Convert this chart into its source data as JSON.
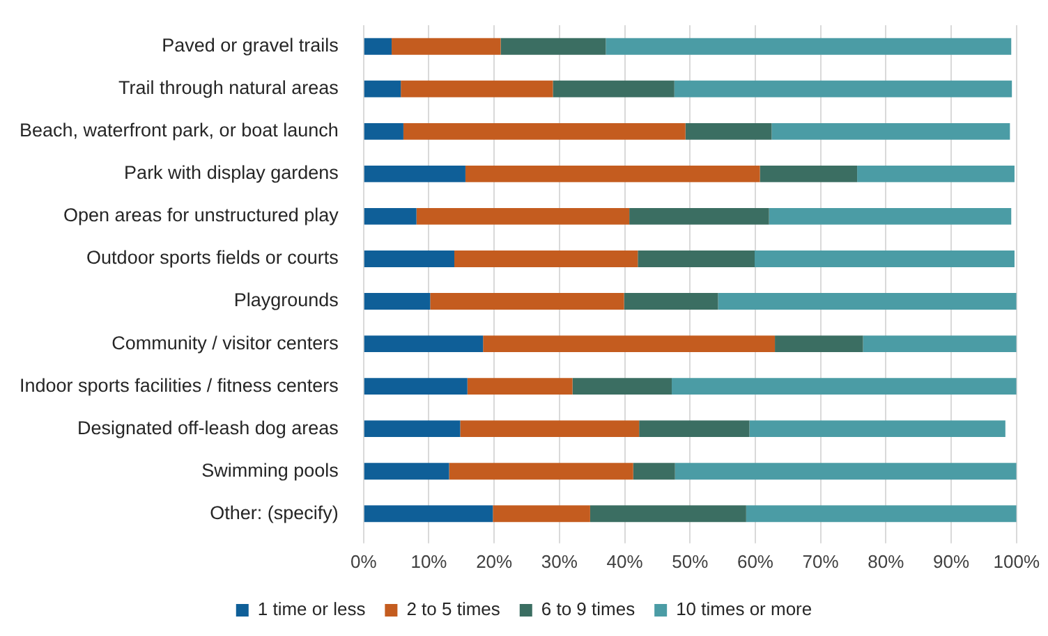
{
  "chart_data": {
    "type": "bar",
    "orientation": "horizontal",
    "stacked": true,
    "categories": [
      "Paved or gravel trails",
      "Trail through natural areas",
      "Beach, waterfront park, or boat launch",
      "Park with display gardens",
      "Open areas for unstructured play",
      "Outdoor sports fields or courts",
      "Playgrounds",
      "Community / visitor centers",
      "Indoor sports facilities / fitness centers",
      "Designated off-leash dog areas",
      "Swimming pools",
      "Other: (specify)"
    ],
    "series": [
      {
        "name": "1 time or less",
        "color": "#0f5f98",
        "values": [
          4.3,
          5.7,
          6.1,
          15.6,
          8.1,
          13.9,
          10.2,
          18.3,
          15.9,
          14.8,
          13.1,
          19.8
        ]
      },
      {
        "name": "2 to 5 times",
        "color": "#c45c1f",
        "values": [
          16.7,
          23.3,
          43.2,
          45.1,
          32.6,
          28.1,
          29.7,
          44.7,
          16.1,
          27.4,
          28.2,
          14.9
        ]
      },
      {
        "name": "6 to 9 times",
        "color": "#3b6e62",
        "values": [
          16.1,
          18.6,
          13.2,
          14.9,
          21.4,
          17.9,
          14.4,
          13.5,
          15.2,
          16.9,
          6.4,
          23.9
        ]
      },
      {
        "name": "10 times or more",
        "color": "#4b9ca5",
        "values": [
          62.1,
          51.7,
          36.5,
          24.1,
          37.1,
          39.8,
          45.7,
          23.5,
          52.8,
          39.2,
          52.3,
          41.4
        ]
      }
    ],
    "xlim": [
      0,
      100
    ],
    "xticks": [
      {
        "value": 0,
        "label": "0%"
      },
      {
        "value": 10,
        "label": "10%"
      },
      {
        "value": 20,
        "label": "20%"
      },
      {
        "value": 30,
        "label": "30%"
      },
      {
        "value": 40,
        "label": "40%"
      },
      {
        "value": 50,
        "label": "50%"
      },
      {
        "value": 60,
        "label": "60%"
      },
      {
        "value": 70,
        "label": "70%"
      },
      {
        "value": 80,
        "label": "80%"
      },
      {
        "value": 90,
        "label": "90%"
      },
      {
        "value": 100,
        "label": "100%"
      }
    ],
    "grid": "x",
    "legend": "bottom"
  }
}
